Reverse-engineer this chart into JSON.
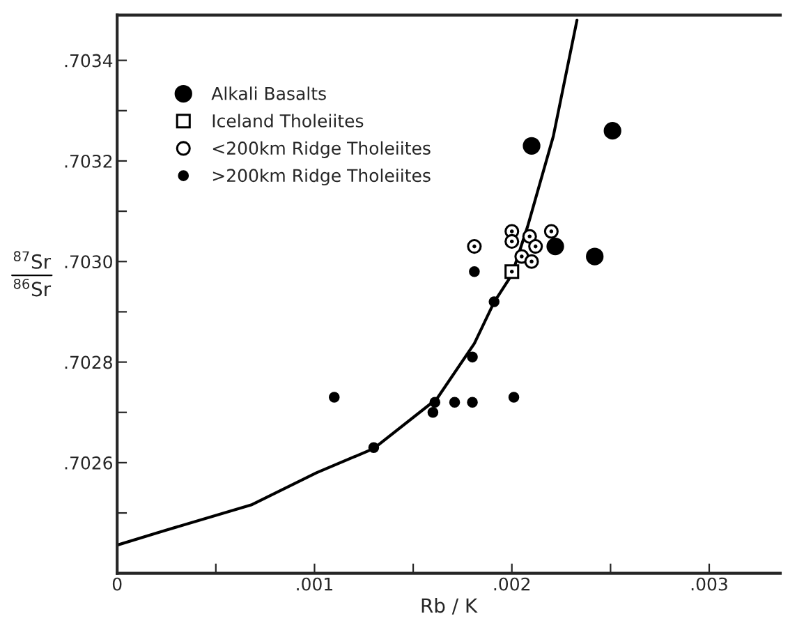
{
  "chart_data": {
    "type": "scatter",
    "xlabel": "Rb / K",
    "ylabel": "$^{87}$Sr\n$^{86}$Sr",
    "xlim": [
      0,
      0.00336
    ],
    "ylim": [
      0.70238,
      0.70349
    ],
    "xticks": [
      {
        "value": 0,
        "label": "0"
      },
      {
        "value": 0.0005,
        "label": null
      },
      {
        "value": 0.001,
        "label": ".001"
      },
      {
        "value": 0.0015,
        "label": null
      },
      {
        "value": 0.002,
        "label": ".002"
      },
      {
        "value": 0.0025,
        "label": null
      },
      {
        "value": 0.003,
        "label": ".003"
      }
    ],
    "yticks": [
      {
        "value": 0.7025,
        "label": null
      },
      {
        "value": 0.7026,
        "label": ".7026"
      },
      {
        "value": 0.7027,
        "label": null
      },
      {
        "value": 0.7028,
        "label": ".7028"
      },
      {
        "value": 0.7029,
        "label": null
      },
      {
        "value": 0.703,
        "label": ".7030"
      },
      {
        "value": 0.7031,
        "label": null
      },
      {
        "value": 0.7032,
        "label": ".7032"
      },
      {
        "value": 0.7033,
        "label": null
      },
      {
        "value": 0.7034,
        "label": ".7034"
      }
    ],
    "grid": false,
    "legend": "top left",
    "series": [
      {
        "name": "Alkali Basalts",
        "color": "#000000",
        "marker": "circle",
        "x": [
          0.0021,
          0.00251,
          0.00222,
          0.00242
        ],
        "values": [
          0.70323,
          0.70326,
          0.70303,
          0.70301
        ]
      },
      {
        "name": "Iceland Tholeiites",
        "color": "#000000",
        "marker": "square",
        "x": [
          0.002
        ],
        "values": [
          0.70298
        ]
      },
      {
        "name": "<200km Ridge Tholeiites",
        "color": "#000000",
        "marker": "circle",
        "x": [
          0.00181,
          0.002,
          0.002,
          0.00209,
          0.00212,
          0.00205,
          0.0021,
          0.0022
        ],
        "values": [
          0.70303,
          0.70306,
          0.70304,
          0.70305,
          0.70303,
          0.70301,
          0.703,
          0.70306
        ]
      },
      {
        "name": ">200km Ridge Tholeiites",
        "color": "#000000",
        "marker": "circle",
        "x": [
          0.00181,
          0.00191,
          0.0018,
          0.0011,
          0.0013,
          0.00161,
          0.0016,
          0.00171,
          0.0018,
          0.00201
        ],
        "values": [
          0.70298,
          0.70292,
          0.70281,
          0.70273,
          0.70263,
          0.70272,
          0.7027,
          0.70272,
          0.70272,
          0.70273
        ]
      },
      {
        "type": "line",
        "color": "#000000",
        "line_style": "solid",
        "x": [
          0,
          0.000207,
          0.000679,
          0.00101,
          0.0013,
          0.00162,
          0.00181,
          0.00191,
          0.002,
          0.00208,
          0.00221,
          0.00233
        ],
        "values": [
          0.702436,
          0.702461,
          0.702516,
          0.70258,
          0.702628,
          0.702727,
          0.702837,
          0.702919,
          0.702974,
          0.70307,
          0.703249,
          0.70348
        ]
      }
    ]
  }
}
